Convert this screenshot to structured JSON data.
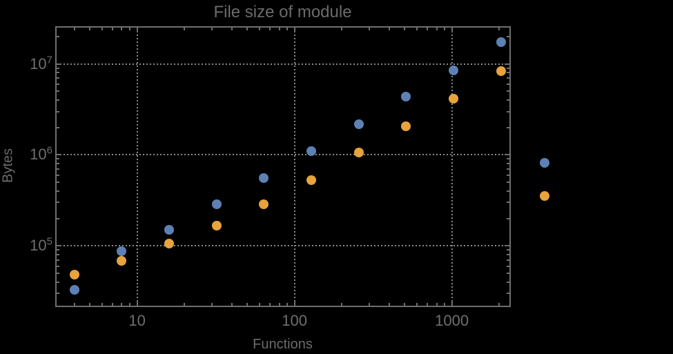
{
  "chart_data": {
    "type": "scatter",
    "title": "File size of module",
    "xlabel": "Functions",
    "ylabel": "Bytes",
    "x_scale": "log",
    "y_scale": "log",
    "xlim": [
      3.05,
      2320
    ],
    "ylim": [
      22000,
      25500000
    ],
    "grid": {
      "style": "dotted",
      "x_values": [
        10,
        100,
        1000
      ],
      "y_values": [
        100000,
        1000000,
        10000000
      ]
    },
    "legend": "none",
    "x_ticks": {
      "major": [
        10,
        100,
        1000
      ],
      "labels": [
        "10",
        "100",
        "1000"
      ],
      "minor": [
        4,
        5,
        6,
        7,
        8,
        9,
        20,
        30,
        40,
        50,
        60,
        70,
        80,
        90,
        200,
        300,
        400,
        500,
        600,
        700,
        800,
        900,
        2000
      ]
    },
    "y_ticks": {
      "major": [
        100000,
        1000000,
        10000000
      ],
      "labels": [
        {
          "base": "10",
          "exp": "5"
        },
        {
          "base": "10",
          "exp": "6"
        },
        {
          "base": "10",
          "exp": "7"
        }
      ],
      "minor": [
        30000,
        40000,
        50000,
        60000,
        70000,
        80000,
        90000,
        200000,
        300000,
        400000,
        500000,
        600000,
        700000,
        800000,
        900000,
        2000000,
        3000000,
        4000000,
        5000000,
        6000000,
        7000000,
        8000000,
        9000000,
        20000000
      ]
    },
    "series": [
      {
        "name": "series-1-blue",
        "color": "#5E81B5",
        "points": [
          [
            4,
            33000
          ],
          [
            8,
            87000
          ],
          [
            16,
            150000
          ],
          [
            32,
            287000
          ],
          [
            64,
            557000
          ],
          [
            128,
            1100000
          ],
          [
            256,
            2170000
          ],
          [
            512,
            4370000
          ],
          [
            1024,
            8490000
          ],
          [
            2048,
            17400000
          ],
          [
            3890,
            817000
          ]
        ]
      },
      {
        "name": "series-2-orange",
        "color": "#E8A33D",
        "points": [
          [
            4,
            48000
          ],
          [
            8,
            68000
          ],
          [
            16,
            106000
          ],
          [
            32,
            167000
          ],
          [
            64,
            287000
          ],
          [
            128,
            528000
          ],
          [
            256,
            1060000
          ],
          [
            512,
            2060000
          ],
          [
            1024,
            4150000
          ],
          [
            2048,
            8340000
          ],
          [
            3890,
            354000
          ]
        ]
      }
    ]
  },
  "colors": {
    "background": "#000000",
    "frame": "#6f6f6f",
    "grid": "#8a8a8a",
    "text": "#6b6b6b",
    "tick_text": "#6f6f6f"
  }
}
